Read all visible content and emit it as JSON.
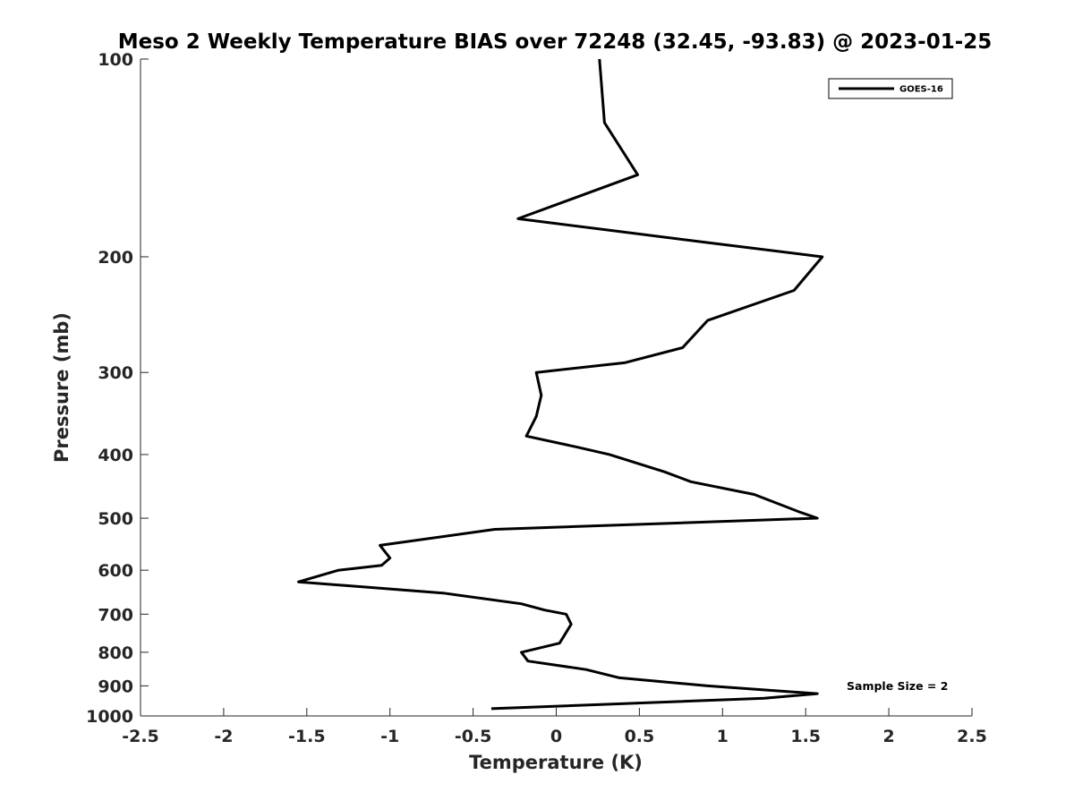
{
  "chart_data": {
    "type": "line",
    "title": "Meso 2 Weekly Temperature BIAS over 72248 (32.45, -93.83) @ 2023-01-25",
    "xlabel": "Temperature (K)",
    "ylabel": "Pressure (mb)",
    "xlim": [
      -2.5,
      2.5
    ],
    "ylim": [
      100,
      1000
    ],
    "y_scale": "log",
    "y_reversed": true,
    "grid": false,
    "x_ticks": [
      -2.5,
      -2,
      -1.5,
      -1,
      -0.5,
      0,
      0.5,
      1,
      1.5,
      2,
      2.5
    ],
    "x_tick_labels": [
      "-2.5",
      "-2",
      "-1.5",
      "-1",
      "-0.5",
      "0",
      "0.5",
      "1",
      "1.5",
      "2",
      "2.5"
    ],
    "y_ticks": [
      100,
      200,
      300,
      400,
      500,
      600,
      700,
      800,
      900,
      1000
    ],
    "y_tick_labels": [
      "100",
      "200",
      "300",
      "400",
      "500",
      "600",
      "700",
      "800",
      "900",
      "1000"
    ],
    "legend": {
      "entries": [
        "GOES-16"
      ],
      "placement": "top-right"
    },
    "annotations": [
      "Sample Size = 2"
    ],
    "series": [
      {
        "name": "GOES-16",
        "color": "#000000",
        "points": [
          {
            "x": 0.26,
            "p": 100
          },
          {
            "x": 0.29,
            "p": 125
          },
          {
            "x": 0.49,
            "p": 150
          },
          {
            "x": -0.23,
            "p": 175
          },
          {
            "x": 0.89,
            "p": 190
          },
          {
            "x": 1.6,
            "p": 200
          },
          {
            "x": 1.43,
            "p": 225
          },
          {
            "x": 0.91,
            "p": 250
          },
          {
            "x": 0.76,
            "p": 275
          },
          {
            "x": 0.41,
            "p": 290
          },
          {
            "x": -0.12,
            "p": 300
          },
          {
            "x": -0.09,
            "p": 325
          },
          {
            "x": -0.12,
            "p": 350
          },
          {
            "x": -0.18,
            "p": 375
          },
          {
            "x": 0.13,
            "p": 390
          },
          {
            "x": 0.32,
            "p": 400
          },
          {
            "x": 0.65,
            "p": 425
          },
          {
            "x": 0.81,
            "p": 440
          },
          {
            "x": 1.19,
            "p": 460
          },
          {
            "x": 1.47,
            "p": 490
          },
          {
            "x": 1.57,
            "p": 500
          },
          {
            "x": -0.37,
            "p": 520
          },
          {
            "x": -1.06,
            "p": 550
          },
          {
            "x": -1.0,
            "p": 575
          },
          {
            "x": -1.05,
            "p": 590
          },
          {
            "x": -1.31,
            "p": 600
          },
          {
            "x": -1.55,
            "p": 625
          },
          {
            "x": -0.68,
            "p": 650
          },
          {
            "x": -0.21,
            "p": 675
          },
          {
            "x": -0.07,
            "p": 690
          },
          {
            "x": 0.06,
            "p": 700
          },
          {
            "x": 0.09,
            "p": 725
          },
          {
            "x": 0.02,
            "p": 775
          },
          {
            "x": -0.21,
            "p": 800
          },
          {
            "x": -0.17,
            "p": 825
          },
          {
            "x": 0.18,
            "p": 850
          },
          {
            "x": 0.38,
            "p": 875
          },
          {
            "x": 0.91,
            "p": 900
          },
          {
            "x": 1.57,
            "p": 925
          },
          {
            "x": 1.25,
            "p": 940
          },
          {
            "x": -0.39,
            "p": 975
          }
        ]
      }
    ]
  }
}
